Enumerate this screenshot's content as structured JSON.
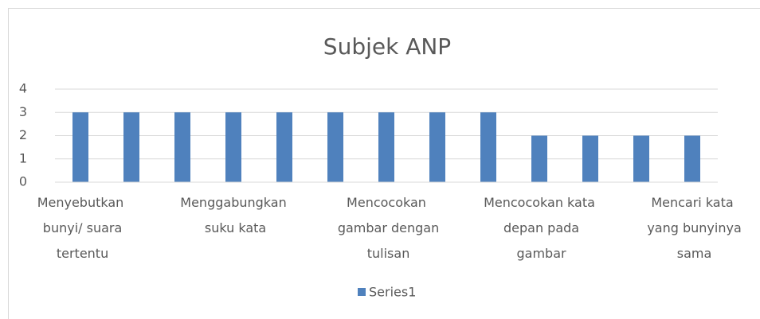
{
  "chart_data": {
    "type": "bar",
    "title": "Subjek ANP",
    "categories": [
      "Menyebutkan bunyi/ suara tertentu",
      null,
      null,
      "Menggabungkan suku kata",
      null,
      null,
      "Mencocokan gambar dengan tulisan",
      null,
      null,
      "Mencocokan kata depan pada gambar",
      null,
      null,
      "Mencari kata yang bunyinya sama"
    ],
    "series": [
      {
        "name": "Series1",
        "color": "#4f81bd",
        "values": [
          3,
          3,
          3,
          3,
          3,
          3,
          3,
          3,
          3,
          2,
          2,
          2,
          2
        ]
      }
    ],
    "ylim": [
      0,
      4
    ],
    "yticks": [
      0,
      1,
      2,
      3,
      4
    ],
    "grid": true,
    "legend": "bottom"
  }
}
